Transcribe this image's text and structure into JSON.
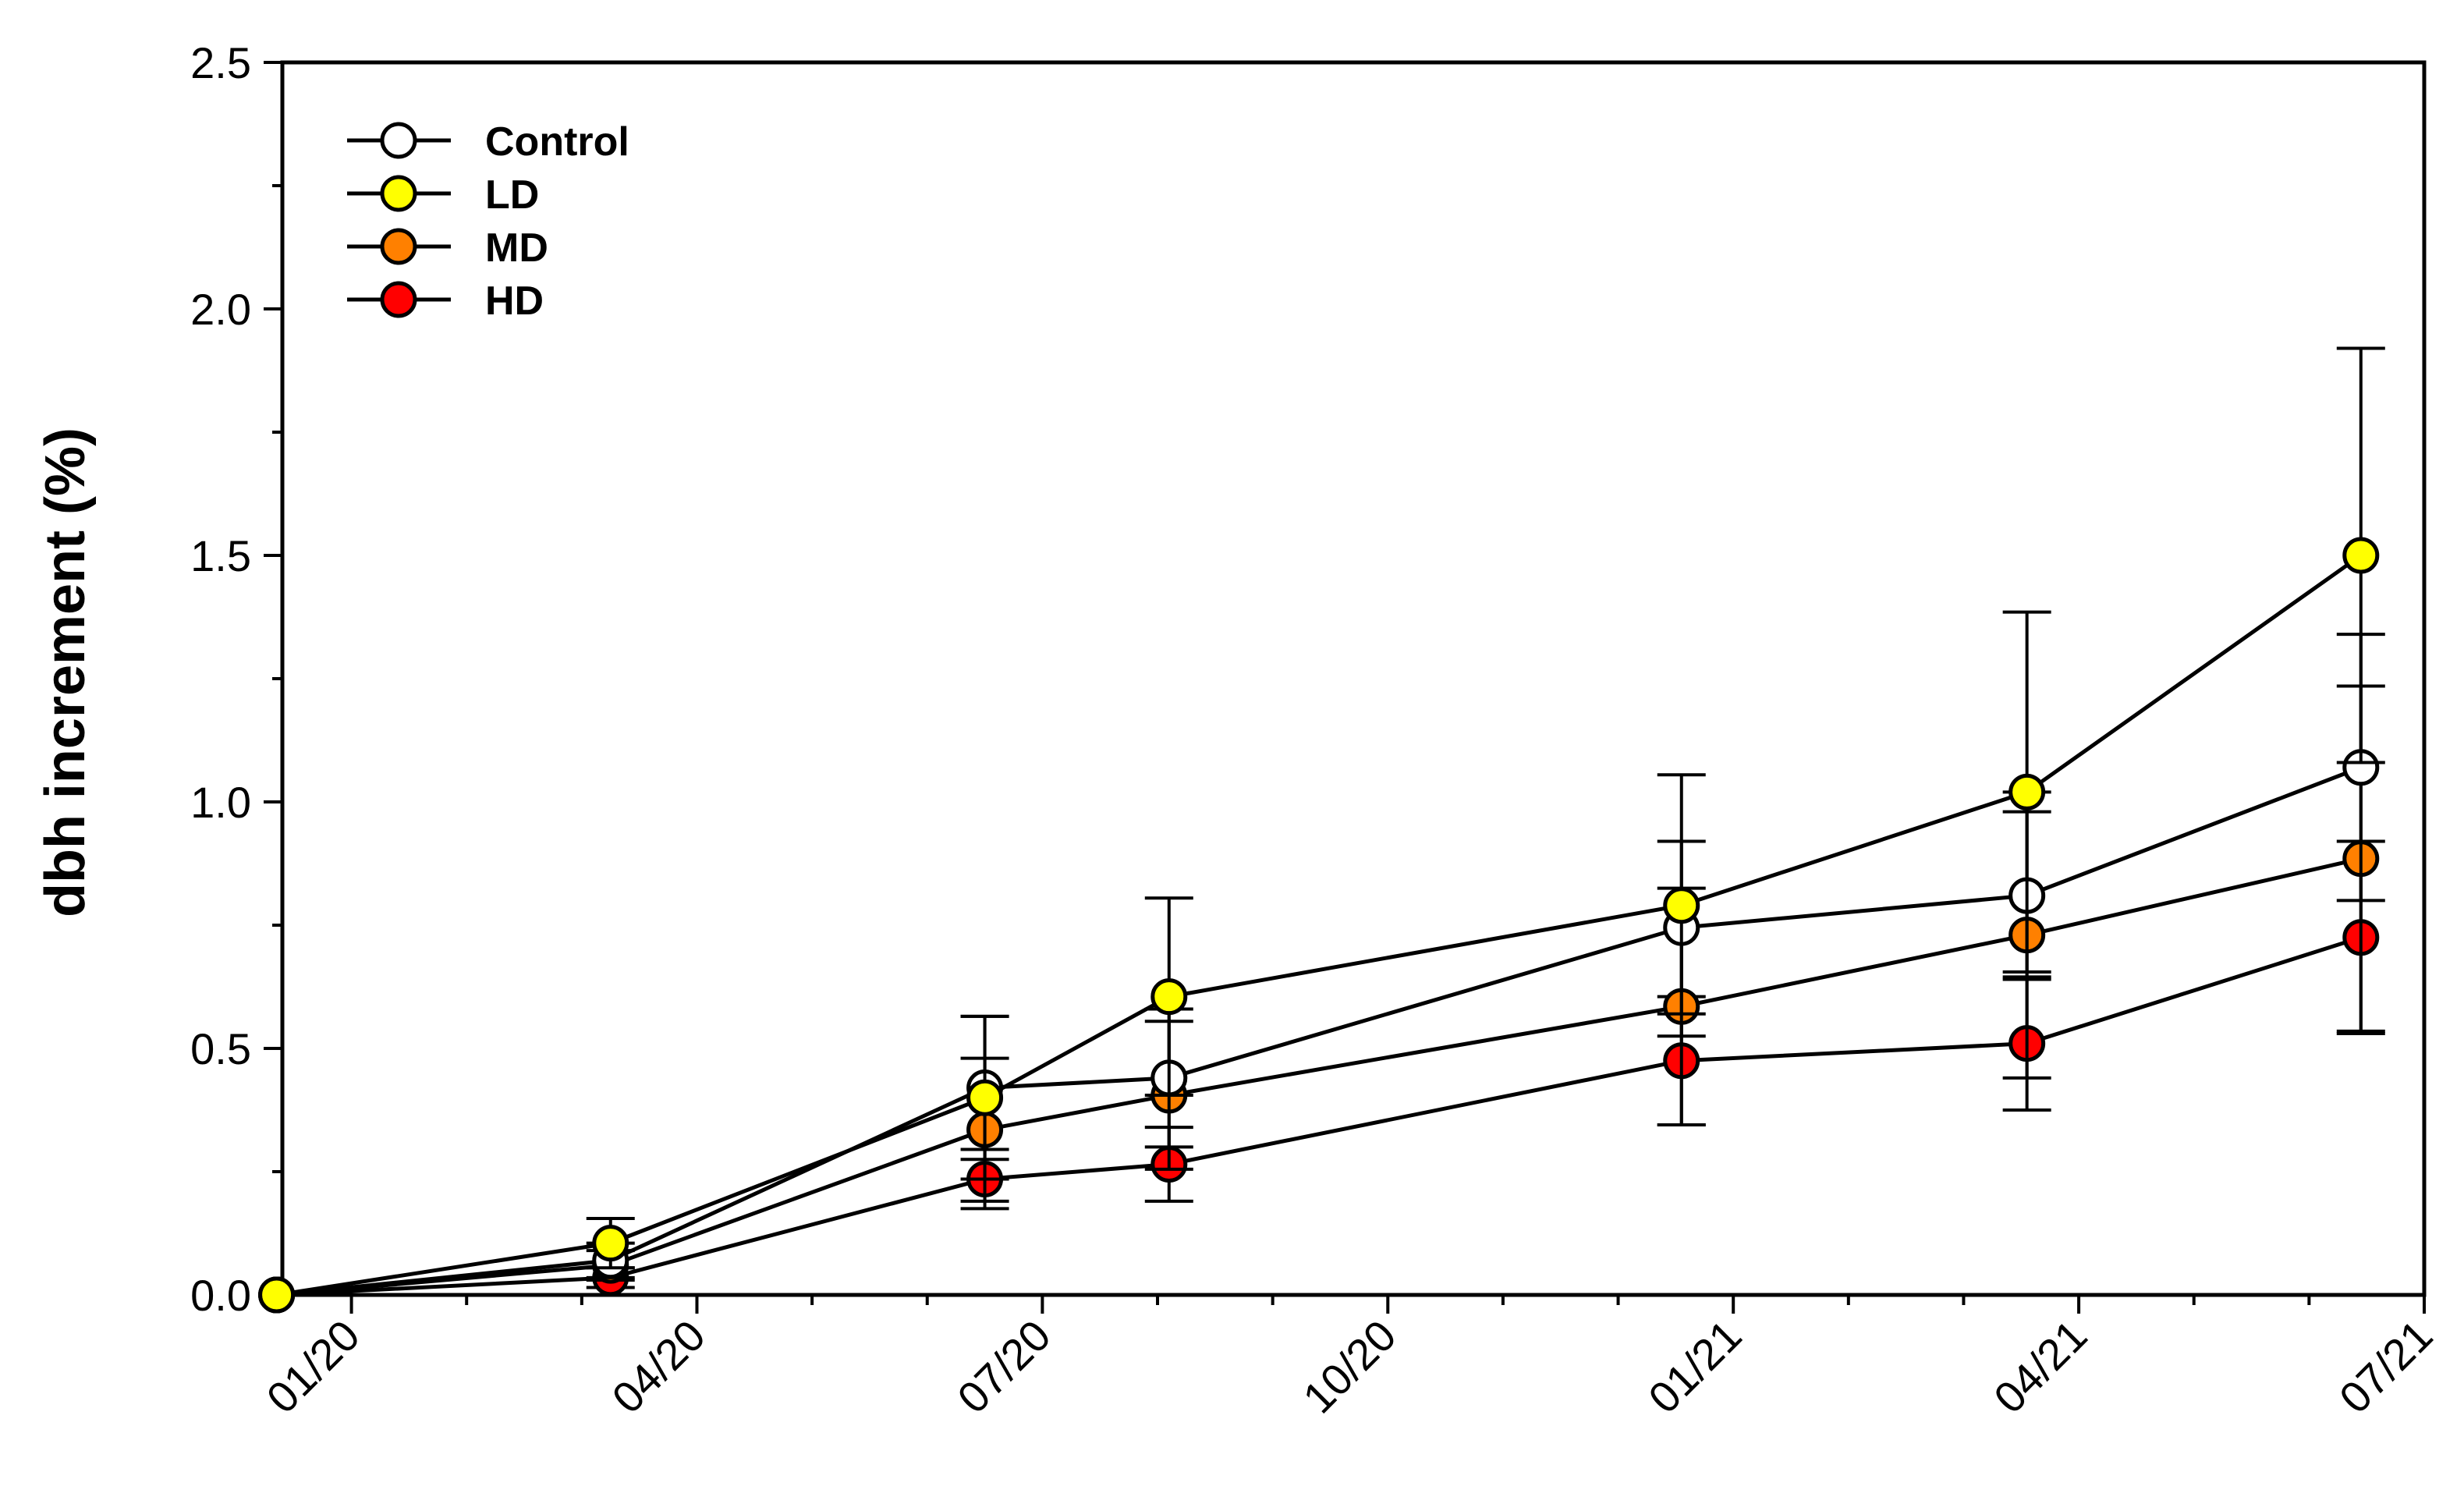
{
  "chart_data": {
    "type": "line",
    "title": "",
    "xlabel": "",
    "ylabel": "dbh increment (%)",
    "ylim": [
      0,
      2.5
    ],
    "yticks": [
      "0.0",
      "0.5",
      "1.0",
      "1.5",
      "2.0",
      "2.5"
    ],
    "xlim_months": [
      -0.6,
      18
    ],
    "xticks": [
      {
        "month": 0,
        "label": "01/20"
      },
      {
        "month": 3,
        "label": "04/20"
      },
      {
        "month": 6,
        "label": "07/20"
      },
      {
        "month": 9,
        "label": "10/20"
      },
      {
        "month": 12,
        "label": "01/21"
      },
      {
        "month": 15,
        "label": "04/21"
      },
      {
        "month": 18,
        "label": "07/21"
      }
    ],
    "x_months": [
      -0.65,
      2.25,
      5.5,
      7.1,
      11.55,
      14.55,
      17.45
    ],
    "legend_position": "top-left",
    "series": [
      {
        "name": "Control",
        "color": "#ffffff",
        "values": [
          0,
          0.07,
          0.42,
          0.44,
          0.745,
          0.81,
          1.07
        ],
        "errors": [
          0,
          0.035,
          0.145,
          0.14,
          0.175,
          0.17,
          0.27
        ]
      },
      {
        "name": "LD",
        "color": "#ffff00",
        "values": [
          0,
          0.105,
          0.4,
          0.605,
          0.79,
          1.02,
          1.5
        ],
        "errors": [
          0,
          0.05,
          0.165,
          0.2,
          0.265,
          0.365,
          0.42
        ]
      },
      {
        "name": "MD",
        "color": "#ff8000",
        "values": [
          0,
          0.06,
          0.335,
          0.405,
          0.585,
          0.73,
          0.885
        ],
        "errors": [
          0,
          0.03,
          0.145,
          0.15,
          0.24,
          0.29,
          0.35
        ]
      },
      {
        "name": "HD",
        "color": "#ff0000",
        "values": [
          0,
          0.035,
          0.235,
          0.265,
          0.475,
          0.51,
          0.725
        ],
        "errors": [
          0,
          0.02,
          0.06,
          0.075,
          0.13,
          0.135,
          0.195
        ]
      }
    ]
  }
}
